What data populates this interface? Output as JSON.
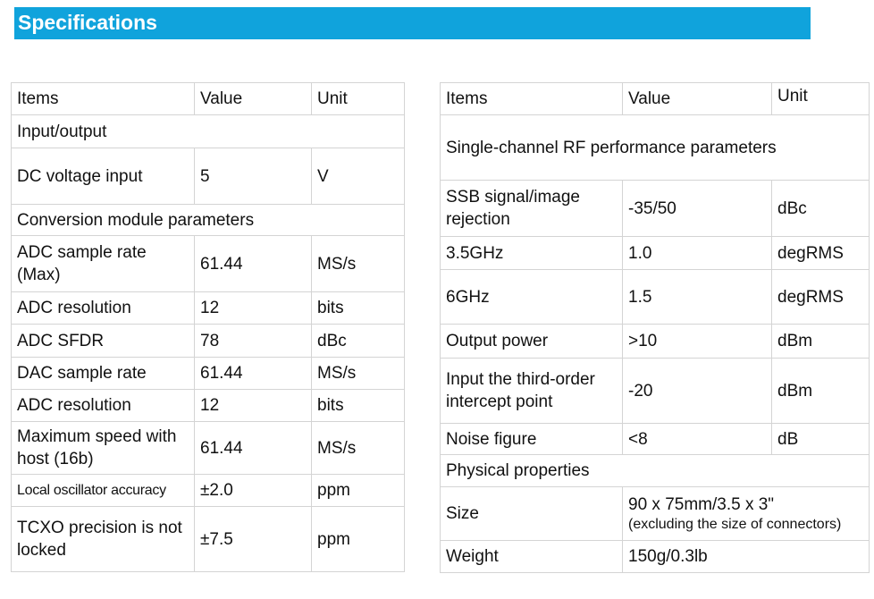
{
  "title": "Specifications",
  "left_table": {
    "headers": [
      "Items",
      "Value",
      "Unit"
    ],
    "sections": {
      "io": "Input/output",
      "conversion": "Conversion module parameters"
    },
    "rows": [
      {
        "item": "DC voltage input",
        "value": "5",
        "unit": "V"
      },
      {
        "item": "ADC sample rate (Max)",
        "value": "61.44",
        "unit": "MS/s"
      },
      {
        "item": "ADC resolution",
        "value": "12",
        "unit": "bits"
      },
      {
        "item": "ADC SFDR",
        "value": "78",
        "unit": "dBc"
      },
      {
        "item": "DAC sample rate",
        "value": "61.44",
        "unit": "MS/s"
      },
      {
        "item": "ADC resolution",
        "value": "12",
        "unit": "bits"
      },
      {
        "item": "Maximum speed with host (16b)",
        "value": "61.44",
        "unit": "MS/s"
      },
      {
        "item": "Local oscillator accuracy",
        "value": "±2.0",
        "unit": "ppm"
      },
      {
        "item": "TCXO precision is not locked",
        "value": "±7.5",
        "unit": "ppm"
      }
    ]
  },
  "right_table": {
    "headers": [
      "Items",
      "Value",
      "Unit"
    ],
    "sections": {
      "rf": "Single-channel RF performance parameters",
      "physical": "Physical properties"
    },
    "rows": [
      {
        "item": "SSB signal/image rejection",
        "value": "-35/50",
        "unit": "dBc"
      },
      {
        "item": "3.5GHz",
        "value": "1.0",
        "unit": "degRMS"
      },
      {
        "item": "6GHz",
        "value": "1.5",
        "unit": "degRMS"
      },
      {
        "item": "Output power",
        "value": ">10",
        "unit": "dBm"
      },
      {
        "item": "Input the third-order intercept point",
        "value": "-20",
        "unit": "dBm"
      },
      {
        "item": "Noise figure",
        "value": "<8",
        "unit": "dB"
      }
    ],
    "physical_rows": [
      {
        "item": "Size",
        "value": "90 x 75mm/3.5 x 3\"",
        "note": "(excluding the size of connectors)"
      },
      {
        "item": "Weight",
        "value": "150g/0.3lb"
      }
    ]
  }
}
